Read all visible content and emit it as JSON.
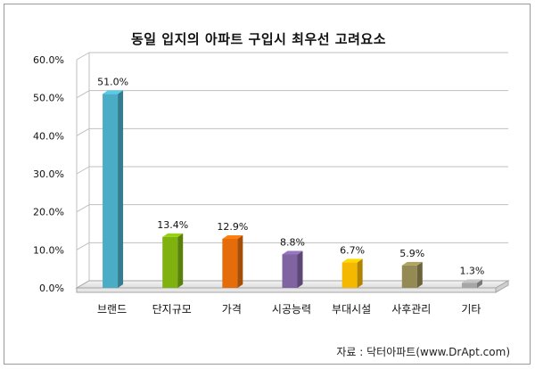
{
  "chart_data": {
    "type": "bar",
    "title": "동일 입지의 아파트 구입시 최우선 고려요소",
    "categories": [
      "브랜드",
      "단지규모",
      "가격",
      "시공능력",
      "부대시설",
      "사후관리",
      "기타"
    ],
    "values": [
      51.0,
      13.4,
      12.9,
      8.8,
      6.7,
      5.9,
      1.3
    ],
    "data_labels": [
      "51.0%",
      "13.4%",
      "12.9%",
      "8.8%",
      "6.7%",
      "5.9%",
      "1.3%"
    ],
    "colors": [
      "#4bacc6",
      "#7fb20f",
      "#e46c0a",
      "#8064a2",
      "#f5b800",
      "#948a54",
      "#a6a6a6"
    ],
    "ylim": [
      0,
      60
    ],
    "yticks": [
      "0.0%",
      "10.0%",
      "20.0%",
      "30.0%",
      "40.0%",
      "50.0%",
      "60.0%"
    ],
    "grid": true,
    "legend": "none",
    "source": "자료 : 닥터아파트(www.DrApt.com)"
  }
}
